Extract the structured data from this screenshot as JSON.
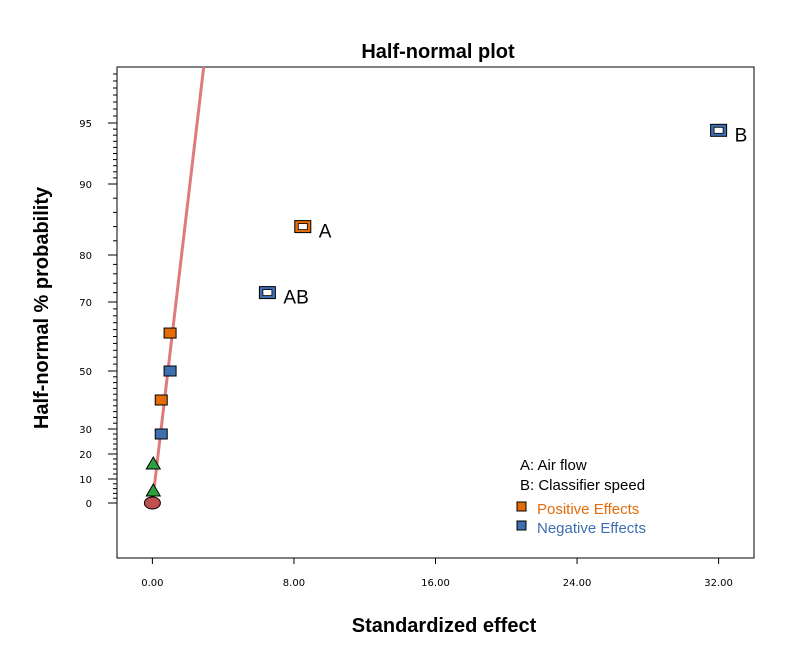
{
  "colors": {
    "positive": "#e36c09",
    "negative": "#3f6faf",
    "fit_line": "#e07b7b",
    "triangle": "#2e9e3e",
    "circle": "#c0504d",
    "axis": "#000000"
  },
  "chart_data": {
    "type": "scatter",
    "title": "Half-normal plot",
    "xlabel": "Standardized effect",
    "ylabel": "Half-normal % probability",
    "x_ticks": [
      0,
      8,
      16,
      24,
      32
    ],
    "x_tick_labels": [
      "0.00",
      "8.00",
      "16.00",
      "24.00",
      "32.00"
    ],
    "xlim": [
      -2.0,
      34.0
    ],
    "y_tick_labels": [
      {
        "p": 0,
        "label": "0"
      },
      {
        "p": 10,
        "label": "10"
      },
      {
        "p": 20,
        "label": "20"
      },
      {
        "p": 30,
        "label": "30"
      },
      {
        "p": 50,
        "label": "50"
      },
      {
        "p": 70,
        "label": "70"
      },
      {
        "p": 80,
        "label": "80"
      },
      {
        "p": 90,
        "label": "90"
      },
      {
        "p": 95,
        "label": "95"
      }
    ],
    "y_scale": "half-normal probability",
    "grid": false,
    "legend_position": "bottom-right",
    "fit_line": {
      "from": {
        "x": 0.0,
        "p": 0
      },
      "to": {
        "x": 2.9,
        "p": 99
      }
    },
    "points": [
      {
        "x": 0.0,
        "p": 0,
        "marker": "circle",
        "effect": "error"
      },
      {
        "x": 0.05,
        "p": 5,
        "marker": "triangle",
        "effect": "error"
      },
      {
        "x": 0.05,
        "p": 16,
        "marker": "triangle",
        "effect": "error"
      },
      {
        "x": 0.5,
        "p": 28,
        "marker": "square",
        "effect": "negative"
      },
      {
        "x": 0.5,
        "p": 40,
        "marker": "square",
        "effect": "positive"
      },
      {
        "x": 1.0,
        "p": 50,
        "marker": "square",
        "effect": "negative"
      },
      {
        "x": 1.0,
        "p": 61,
        "marker": "square",
        "effect": "positive"
      },
      {
        "x": 6.5,
        "p": 72,
        "marker": "square-open",
        "effect": "negative",
        "label": "AB"
      },
      {
        "x": 8.5,
        "p": 84,
        "marker": "square-open",
        "effect": "positive",
        "label": "A"
      },
      {
        "x": 32.0,
        "p": 94.4,
        "marker": "square-open",
        "effect": "negative",
        "label": "B"
      }
    ],
    "legend": {
      "factors": [
        "A: Air flow",
        "B: Classifier speed"
      ],
      "entries": [
        {
          "label": "Positive Effects",
          "effect": "positive"
        },
        {
          "label": "Negative Effects",
          "effect": "negative"
        }
      ]
    }
  }
}
